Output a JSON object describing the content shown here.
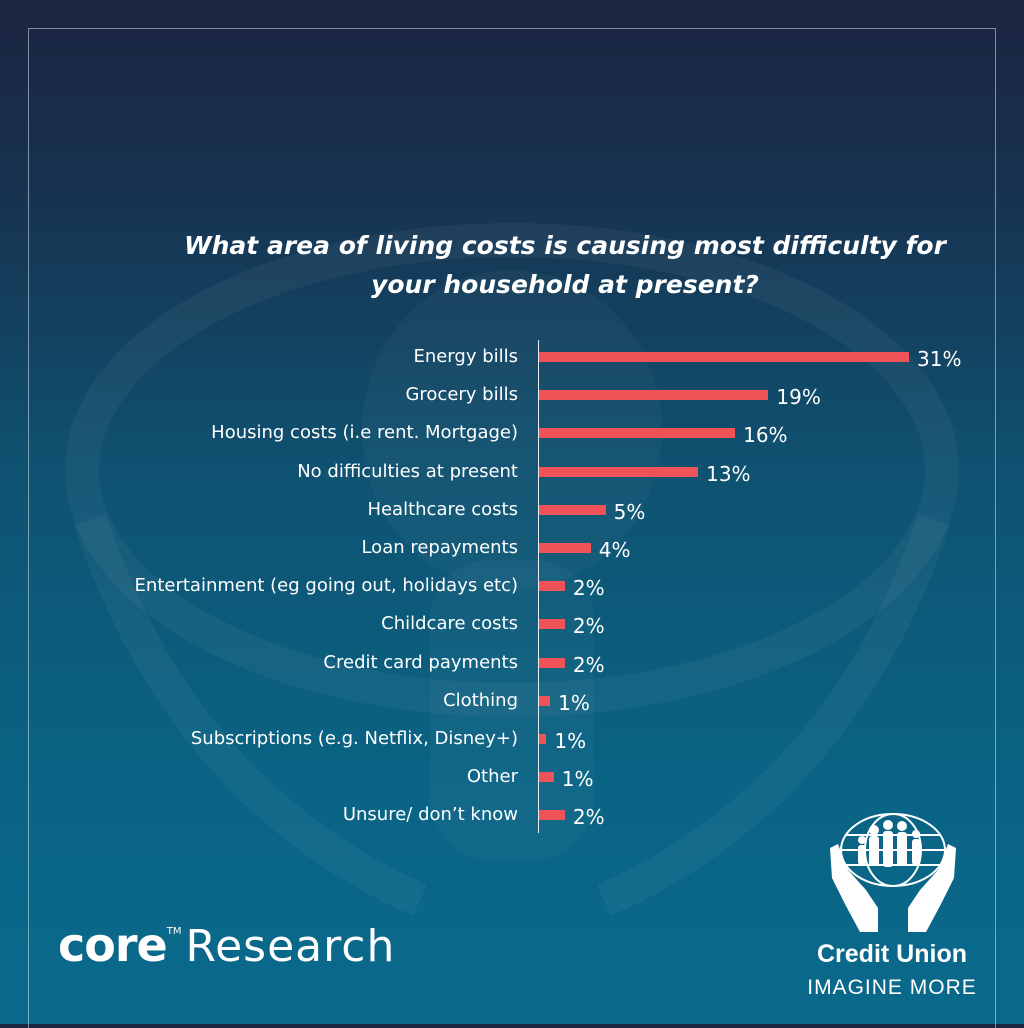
{
  "title_lines": [
    "What area of living costs is causing most difficulty for",
    "your household at present?"
  ],
  "colors": {
    "bar": "#ef5358",
    "text": "#ffffff",
    "accent_bg": "#0a6384"
  },
  "chart_data": {
    "type": "bar",
    "orientation": "horizontal",
    "title": "What area of living costs is causing most difficulty for your household at present?",
    "categories": [
      "Energy bills",
      "Grocery bills",
      "Housing costs (i.e rent. Mortgage)",
      "No difficulties at present",
      "Healthcare costs",
      "Loan repayments",
      "Entertainment (eg going out, holidays etc)",
      "Childcare costs",
      "Credit card payments",
      "Clothing",
      "Subscriptions (e.g. Netflix, Disney+)",
      "Other",
      "Unsure/ don’t know"
    ],
    "values": [
      31,
      19,
      16,
      13,
      5,
      4,
      2,
      2,
      2,
      1,
      1,
      1,
      2
    ],
    "value_labels": [
      "31%",
      "19%",
      "16%",
      "13%",
      "5%",
      "4%",
      "2%",
      "2%",
      "2%",
      "1%",
      "1%",
      "1%",
      "2%"
    ],
    "xlim": [
      0,
      31
    ],
    "grid": false,
    "legend": "none"
  },
  "bar_fractions": [
    1.0,
    0.62,
    0.53,
    0.43,
    0.18,
    0.14,
    0.07,
    0.07,
    0.07,
    0.03,
    0.02,
    0.04,
    0.07
  ],
  "brand_left": {
    "core": "core",
    "tm": "TM",
    "research": "Research"
  },
  "brand_right": {
    "name": "Credit Union",
    "tagline": "IMAGINE MORE"
  }
}
